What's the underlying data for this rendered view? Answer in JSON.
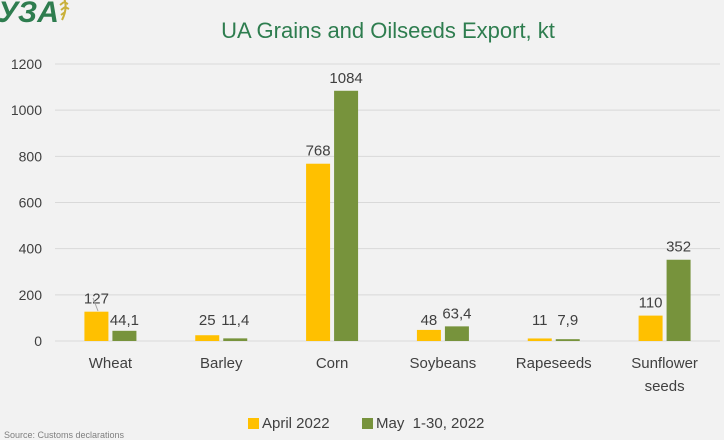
{
  "logo_text": "УЗА",
  "source_note": "Source: Customs declarations",
  "colors": {
    "april": "#ffc000",
    "may": "#77933c",
    "title": "#2e7d4f",
    "grid": "#d9d9d9"
  },
  "chart_data": {
    "type": "bar",
    "title": "UA Grains and Oilseeds Export, kt",
    "xlabel": "",
    "ylabel": "",
    "ylim": [
      0,
      1200
    ],
    "yticks": [
      0,
      200,
      400,
      600,
      800,
      1000,
      1200
    ],
    "grid": true,
    "legend": "bottom",
    "categories": [
      "Wheat",
      "Barley",
      "Corn",
      "Soybeans",
      "Rapeseeds",
      "Sunflower seeds"
    ],
    "series": [
      {
        "name": "April 2022",
        "values": [
          127,
          25,
          768,
          48,
          11,
          110
        ],
        "labels": [
          "127",
          "25",
          "768",
          "48",
          "11",
          "110"
        ]
      },
      {
        "name": "May  1-30, 2022",
        "values": [
          44.1,
          11.4,
          1084,
          63.4,
          7.9,
          352
        ],
        "labels": [
          "44,1",
          "11,4",
          "1084",
          "63,4",
          "7,9",
          "352"
        ]
      }
    ]
  }
}
